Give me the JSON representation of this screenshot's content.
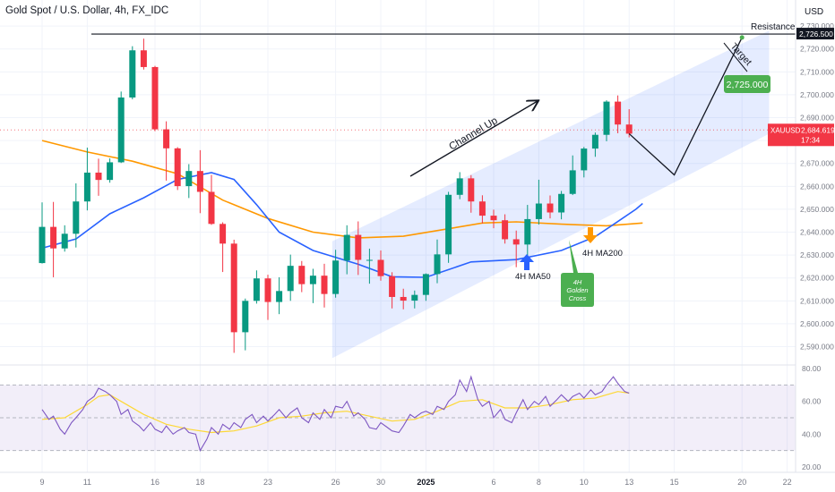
{
  "header": {
    "title": "Gold Spot / U.S. Dollar, 4h, FX_IDC",
    "currency": "USD"
  },
  "chart_data": {
    "type": "candlestick",
    "symbol": "XAUUSD",
    "price_axis": {
      "range": [
        2582,
        2732
      ],
      "ticks": [
        "2,590.000",
        "2,600.000",
        "2,610.000",
        "2,620.000",
        "2,630.000",
        "2,640.000",
        "2,650.000",
        "2,660.000",
        "2,670.000",
        "2,680.000",
        "2,690.000",
        "2,700.000",
        "2,710.000",
        "2,720.000",
        "2,730.000"
      ]
    },
    "x_axis": {
      "ticks": [
        {
          "label": "9",
          "x": 0.0
        },
        {
          "label": "11",
          "x": 2.0
        },
        {
          "label": "16",
          "x": 5.0
        },
        {
          "label": "18",
          "x": 7.0
        },
        {
          "label": "23",
          "x": 10.0
        },
        {
          "label": "26",
          "x": 13.0
        },
        {
          "label": "30",
          "x": 15.0
        },
        {
          "label": "2025",
          "x": 17.0,
          "bold": true
        },
        {
          "label": "6",
          "x": 20.0
        },
        {
          "label": "8",
          "x": 22.0
        },
        {
          "label": "10",
          "x": 24.0
        },
        {
          "label": "13",
          "x": 26.0
        },
        {
          "label": "15",
          "x": 28.0
        },
        {
          "label": "20",
          "x": 31.0
        },
        {
          "label": "22",
          "x": 33.0
        }
      ]
    },
    "last_price": {
      "value": 2684.619,
      "label": "2,684.619",
      "timer": "17:34",
      "symbol": "XAUUSD"
    },
    "resistance": {
      "value": 2726.5,
      "label": "2,726.500",
      "name": "Resistance 1"
    },
    "target": {
      "value": 2725.0,
      "label": "2,725.000",
      "text": "Target"
    },
    "annotations": {
      "channel": "Channel Up",
      "ma50": "4H MA50",
      "ma200": "4H MA200",
      "golden_cross_lines": [
        "4H",
        "Golden",
        "Cross"
      ]
    },
    "colors": {
      "up": "#089981",
      "down": "#f23645",
      "ma50": "#2962ff",
      "ma200": "#ff9800",
      "rsi": "#7e57c2",
      "rsi_ma": "#fdd835",
      "channel": "#2962ff",
      "target_box": "#4caf50",
      "price_label": "#f23645"
    },
    "candles": [
      [
        2626.5,
        2642.3,
        2626.3,
        2653.0
      ],
      [
        2642.3,
        2632.9,
        2620.3,
        2653.2
      ],
      [
        2632.9,
        2639.3,
        2631.5,
        2643.0
      ],
      [
        2639.3,
        2653.4,
        2633.3,
        2661.3
      ],
      [
        2653.4,
        2666.0,
        2649.5,
        2676.9
      ],
      [
        2666.0,
        2662.8,
        2655.9,
        2672.1
      ],
      [
        2662.8,
        2670.5,
        2661.6,
        2672.2
      ],
      [
        2670.5,
        2698.8,
        2670.2,
        2701.4
      ],
      [
        2698.8,
        2719.4,
        2698.0,
        2721.2
      ],
      [
        2719.4,
        2712.1,
        2711.0,
        2724.5
      ],
      [
        2712.1,
        2684.9,
        2684.1,
        2712.6
      ],
      [
        2684.9,
        2676.6,
        2662.5,
        2688.4
      ],
      [
        2676.6,
        2660.1,
        2658.4,
        2677.1
      ],
      [
        2660.1,
        2666.7,
        2654.9,
        2669.7
      ],
      [
        2666.7,
        2657.6,
        2648.3,
        2675.8
      ],
      [
        2657.6,
        2643.6,
        2643.2,
        2665.0
      ],
      [
        2643.6,
        2635.0,
        2622.6,
        2644.3
      ],
      [
        2635.0,
        2596.3,
        2587.3,
        2636.7
      ],
      [
        2596.3,
        2610.0,
        2588.4,
        2611.0
      ],
      [
        2610.0,
        2619.8,
        2608.8,
        2623.3
      ],
      [
        2619.8,
        2609.5,
        2601.7,
        2621.4
      ],
      [
        2609.5,
        2614.3,
        2604.2,
        2620.3
      ],
      [
        2614.3,
        2625.3,
        2610.0,
        2630.2
      ],
      [
        2625.3,
        2617.3,
        2613.8,
        2627.4
      ],
      [
        2617.3,
        2621.0,
        2609.0,
        2624.0
      ],
      [
        2621.0,
        2613.0,
        2607.1,
        2626.2
      ],
      [
        2613.0,
        2627.6,
        2611.4,
        2632.3
      ],
      [
        2627.6,
        2638.8,
        2621.6,
        2643.0
      ],
      [
        2638.8,
        2627.9,
        2621.3,
        2644.7
      ],
      [
        2627.9,
        2627.9,
        2617.5,
        2632.8
      ],
      [
        2627.9,
        2620.8,
        2618.8,
        2632.0
      ],
      [
        2620.8,
        2611.7,
        2606.7,
        2622.5
      ],
      [
        2611.7,
        2610.1,
        2606.3,
        2615.3
      ],
      [
        2610.1,
        2612.6,
        2606.7,
        2614.5
      ],
      [
        2612.6,
        2621.7,
        2610.0,
        2622.0
      ],
      [
        2621.7,
        2630.3,
        2617.7,
        2636.8
      ],
      [
        2630.3,
        2656.3,
        2626.6,
        2657.6
      ],
      [
        2656.3,
        2663.5,
        2654.4,
        2666.2
      ],
      [
        2663.5,
        2653.4,
        2648.5,
        2664.9
      ],
      [
        2653.4,
        2647.2,
        2643.8,
        2656.1
      ],
      [
        2647.2,
        2645.2,
        2641.7,
        2649.8
      ],
      [
        2645.2,
        2636.9,
        2635.0,
        2647.8
      ],
      [
        2636.9,
        2634.6,
        2624.7,
        2640.7
      ],
      [
        2634.6,
        2645.7,
        2627.8,
        2651.9
      ],
      [
        2645.7,
        2652.5,
        2643.3,
        2662.9
      ],
      [
        2652.5,
        2648.6,
        2646.0,
        2656.0
      ],
      [
        2648.6,
        2656.7,
        2645.6,
        2658.0
      ],
      [
        2656.7,
        2667.0,
        2656.2,
        2673.5
      ],
      [
        2667.0,
        2676.5,
        2663.9,
        2677.2
      ],
      [
        2676.5,
        2682.5,
        2672.9,
        2683.5
      ],
      [
        2682.5,
        2697.0,
        2679.7,
        2697.6
      ],
      [
        2697.0,
        2687.0,
        2683.2,
        2699.7
      ],
      [
        2687.0,
        2683.0,
        2681.4,
        2693.7
      ]
    ],
    "ma50": [
      [
        0,
        2633.0
      ],
      [
        1.5,
        2637.0
      ],
      [
        3,
        2648.0
      ],
      [
        4.5,
        2655.0
      ],
      [
        6,
        2663.0
      ],
      [
        7.5,
        2666.0
      ],
      [
        8.5,
        2663.0
      ],
      [
        9.5,
        2652.0
      ],
      [
        10.5,
        2640.0
      ],
      [
        12,
        2632.0
      ],
      [
        14,
        2626.0
      ],
      [
        15.5,
        2620.5
      ],
      [
        17,
        2620.3
      ],
      [
        19,
        2627.0
      ],
      [
        21,
        2628.0
      ],
      [
        23,
        2632.0
      ],
      [
        24.5,
        2638.0
      ],
      [
        25.4,
        2644.0
      ],
      [
        26.3,
        2650.0
      ],
      [
        26.6,
        2652.5
      ]
    ],
    "ma200": [
      [
        0,
        2680.0
      ],
      [
        2,
        2675.0
      ],
      [
        4,
        2671.0
      ],
      [
        6,
        2665.5
      ],
      [
        8,
        2654.0
      ],
      [
        10,
        2646.0
      ],
      [
        12,
        2640.0
      ],
      [
        14,
        2637.5
      ],
      [
        16,
        2638.2
      ],
      [
        18,
        2641.5
      ],
      [
        19.5,
        2644.0
      ],
      [
        21,
        2644.5
      ],
      [
        23,
        2643.5
      ],
      [
        25,
        2642.8
      ],
      [
        26.6,
        2644.0
      ]
    ],
    "rsi": {
      "ylim": [
        20,
        80
      ],
      "ticks": [
        "20.00",
        "40.00",
        "60.00",
        "80.00"
      ],
      "band": [
        30,
        70
      ],
      "values": [
        [
          0.0,
          55.0
        ],
        [
          0.3,
          49.0
        ],
        [
          0.5,
          51.0
        ],
        [
          0.8,
          43.0
        ],
        [
          1.0,
          40.0
        ],
        [
          1.3,
          47.0
        ],
        [
          1.5,
          50.0
        ],
        [
          1.8,
          55.0
        ],
        [
          2.0,
          60.0
        ],
        [
          2.3,
          63.0
        ],
        [
          2.5,
          68.0
        ],
        [
          2.8,
          66.0
        ],
        [
          3.0,
          64.0
        ],
        [
          3.3,
          60.0
        ],
        [
          3.5,
          52.0
        ],
        [
          3.8,
          55.0
        ],
        [
          4.0,
          48.0
        ],
        [
          4.3,
          45.0
        ],
        [
          4.5,
          42.0
        ],
        [
          4.8,
          47.0
        ],
        [
          5.0,
          43.0
        ],
        [
          5.3,
          41.0
        ],
        [
          5.5,
          45.0
        ],
        [
          5.8,
          40.0
        ],
        [
          6.0,
          42.0
        ],
        [
          6.3,
          44.0
        ],
        [
          6.5,
          41.0
        ],
        [
          6.8,
          40.0
        ],
        [
          7.0,
          30.0
        ],
        [
          7.3,
          37.0
        ],
        [
          7.5,
          44.0
        ],
        [
          7.8,
          40.0
        ],
        [
          8.0,
          46.0
        ],
        [
          8.3,
          43.0
        ],
        [
          8.5,
          47.0
        ],
        [
          8.8,
          44.0
        ],
        [
          9.0,
          49.0
        ],
        [
          9.3,
          52.0
        ],
        [
          9.5,
          47.0
        ],
        [
          9.8,
          51.0
        ],
        [
          10.0,
          48.0
        ],
        [
          10.3,
          52.0
        ],
        [
          10.5,
          55.0
        ],
        [
          10.8,
          50.0
        ],
        [
          11.0,
          53.0
        ],
        [
          11.3,
          56.0
        ],
        [
          11.5,
          50.0
        ],
        [
          11.8,
          47.0
        ],
        [
          12.0,
          53.0
        ],
        [
          12.3,
          49.0
        ],
        [
          12.5,
          55.0
        ],
        [
          12.8,
          50.0
        ],
        [
          13.0,
          57.0
        ],
        [
          13.3,
          56.0
        ],
        [
          13.5,
          60.0
        ],
        [
          13.8,
          51.0
        ],
        [
          14.0,
          53.0
        ],
        [
          14.3,
          49.0
        ],
        [
          14.5,
          44.0
        ],
        [
          14.8,
          43.0
        ],
        [
          15.0,
          47.0
        ],
        [
          15.3,
          44.0
        ],
        [
          15.5,
          42.0
        ],
        [
          15.8,
          41.0
        ],
        [
          16.0,
          45.0
        ],
        [
          16.3,
          52.0
        ],
        [
          16.5,
          50.0
        ],
        [
          16.8,
          53.0
        ],
        [
          17.0,
          54.0
        ],
        [
          17.3,
          52.0
        ],
        [
          17.5,
          57.0
        ],
        [
          17.8,
          55.0
        ],
        [
          18.0,
          60.0
        ],
        [
          18.3,
          64.0
        ],
        [
          18.5,
          73.0
        ],
        [
          18.8,
          66.0
        ],
        [
          19.0,
          75.0
        ],
        [
          19.3,
          61.0
        ],
        [
          19.5,
          57.0
        ],
        [
          19.8,
          60.0
        ],
        [
          20.0,
          50.0
        ],
        [
          20.3,
          55.0
        ],
        [
          20.5,
          49.0
        ],
        [
          20.8,
          47.0
        ],
        [
          21.0,
          53.0
        ],
        [
          21.3,
          61.0
        ],
        [
          21.5,
          55.0
        ],
        [
          21.8,
          60.0
        ],
        [
          22.0,
          58.0
        ],
        [
          22.3,
          63.0
        ],
        [
          22.5,
          57.0
        ],
        [
          22.8,
          61.0
        ],
        [
          23.0,
          64.0
        ],
        [
          23.3,
          60.0
        ],
        [
          23.5,
          63.0
        ],
        [
          23.8,
          65.0
        ],
        [
          24.0,
          62.0
        ],
        [
          24.3,
          67.0
        ],
        [
          24.5,
          64.0
        ],
        [
          24.8,
          66.0
        ],
        [
          25.0,
          70.0
        ],
        [
          25.3,
          75.0
        ],
        [
          25.5,
          71.0
        ],
        [
          25.8,
          66.0
        ],
        [
          26.0,
          65.0
        ]
      ],
      "ma": [
        [
          0.0,
          49.0
        ],
        [
          1.0,
          50.0
        ],
        [
          2.0,
          58.0
        ],
        [
          2.5,
          63.0
        ],
        [
          3.0,
          64.0
        ],
        [
          3.5,
          60.0
        ],
        [
          4.5,
          52.0
        ],
        [
          5.5,
          46.0
        ],
        [
          6.5,
          43.0
        ],
        [
          7.5,
          41.0
        ],
        [
          8.5,
          42.0
        ],
        [
          9.5,
          45.0
        ],
        [
          10.5,
          50.0
        ],
        [
          11.5,
          51.0
        ],
        [
          12.5,
          53.0
        ],
        [
          13.5,
          54.0
        ],
        [
          14.5,
          51.0
        ],
        [
          15.5,
          48.0
        ],
        [
          16.5,
          49.0
        ],
        [
          17.5,
          54.0
        ],
        [
          18.5,
          60.0
        ],
        [
          19.5,
          61.0
        ],
        [
          20.5,
          56.0
        ],
        [
          21.5,
          56.0
        ],
        [
          22.5,
          58.0
        ],
        [
          23.5,
          61.0
        ],
        [
          24.5,
          62.0
        ],
        [
          25.5,
          66.0
        ],
        [
          26.0,
          65.0
        ]
      ]
    }
  }
}
